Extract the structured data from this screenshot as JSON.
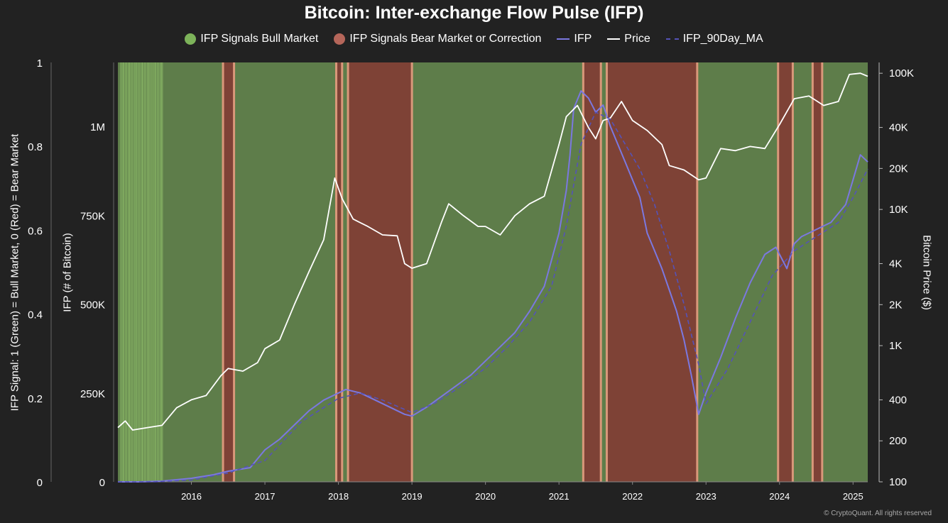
{
  "colors": {
    "background": "#222222",
    "bull": "#5e7d4a",
    "bull_bright": "#8fbe6a",
    "bear": "#7e4236",
    "bear_edge": "#d9987a",
    "legend_bull": "#7db35a",
    "legend_bear": "#b5665a",
    "ifp": "#7b78e0",
    "price": "#ffffff",
    "ma": "#5552b8"
  },
  "chart_data": {
    "type": "line",
    "title": "Bitcoin: Inter-exchange Flow Pulse (IFP)",
    "legend": {
      "placement": "top-center",
      "entries": [
        {
          "label": "IFP Signals Bull Market",
          "symbol": "dot",
          "color": "#7db35a"
        },
        {
          "label": "IFP Signals Bear Market or Correction",
          "symbol": "dot",
          "color": "#b5665a"
        },
        {
          "label": "IFP",
          "symbol": "line",
          "color": "#7b78e0"
        },
        {
          "label": "Price",
          "symbol": "line",
          "color": "#ffffff"
        },
        {
          "label": "IFP_90Day_MA",
          "symbol": "dash",
          "color": "#5552b8"
        }
      ]
    },
    "x_axis": {
      "range": [
        2015.0,
        2025.2
      ],
      "ticks": [
        2016,
        2017,
        2018,
        2019,
        2020,
        2021,
        2022,
        2023,
        2024,
        2025
      ],
      "tick_labels": [
        "2016",
        "2017",
        "2018",
        "2019",
        "2020",
        "2021",
        "2022",
        "2023",
        "2024",
        "2025"
      ]
    },
    "y_axis_signal": {
      "label": "IFP Signal: 1 (Green) = Bull Market, 0 (Red) = Bear Market",
      "range": [
        0,
        1
      ],
      "ticks": [
        0,
        0.2,
        0.4,
        0.6,
        0.8,
        1
      ],
      "tick_labels": [
        "0",
        "0.2",
        "0.4",
        "0.6",
        "0.8",
        "1"
      ]
    },
    "y_axis_ifp": {
      "label": "IFP (# of Bitcoin)",
      "range": [
        0,
        1180000
      ],
      "ticks": [
        0,
        250000,
        500000,
        750000,
        1000000
      ],
      "tick_labels": [
        "0",
        "250K",
        "500K",
        "750K",
        "1M"
      ]
    },
    "y_axis_price": {
      "label": "Bitcoin Price ($)",
      "scale": "log",
      "range": [
        100,
        120000
      ],
      "ticks": [
        100,
        200,
        400,
        1000,
        2000,
        4000,
        10000,
        20000,
        40000,
        100000
      ],
      "tick_labels": [
        "100",
        "200",
        "400",
        "1K",
        "2K",
        "4K",
        "10K",
        "20K",
        "40K",
        "100K"
      ]
    },
    "grid": false,
    "early_bull_stripes": {
      "range": [
        2015.03,
        2015.62
      ],
      "count": 34
    },
    "bear_periods": [
      [
        2016.43,
        2016.58
      ],
      [
        2017.97,
        2018.05
      ],
      [
        2018.13,
        2019.0
      ],
      [
        2021.33,
        2021.57
      ],
      [
        2021.65,
        2022.88
      ],
      [
        2023.98,
        2024.18
      ],
      [
        2024.45,
        2024.58
      ]
    ],
    "series": [
      {
        "name": "IFP",
        "axis": "ifp",
        "x": [
          2015.0,
          2015.3,
          2015.6,
          2016.0,
          2016.3,
          2016.5,
          2016.8,
          2017.0,
          2017.2,
          2017.4,
          2017.6,
          2017.8,
          2018.0,
          2018.1,
          2018.3,
          2018.5,
          2018.7,
          2018.9,
          2019.0,
          2019.2,
          2019.4,
          2019.6,
          2019.8,
          2020.0,
          2020.2,
          2020.4,
          2020.6,
          2020.8,
          2021.0,
          2021.1,
          2021.15,
          2021.2,
          2021.3,
          2021.4,
          2021.5,
          2021.6,
          2021.7,
          2021.8,
          2021.9,
          2022.0,
          2022.1,
          2022.2,
          2022.3,
          2022.4,
          2022.5,
          2022.6,
          2022.7,
          2022.8,
          2022.9,
          2023.0,
          2023.2,
          2023.4,
          2023.6,
          2023.8,
          2023.95,
          2024.1,
          2024.2,
          2024.3,
          2024.5,
          2024.7,
          2024.9,
          2025.0,
          2025.1,
          2025.2
        ],
        "values": [
          0,
          0,
          2000,
          10000,
          20000,
          30000,
          40000,
          90000,
          120000,
          160000,
          200000,
          230000,
          250000,
          260000,
          250000,
          230000,
          210000,
          190000,
          185000,
          210000,
          240000,
          270000,
          300000,
          340000,
          380000,
          420000,
          480000,
          550000,
          700000,
          820000,
          920000,
          1050000,
          1100000,
          1080000,
          1040000,
          1060000,
          1000000,
          950000,
          900000,
          850000,
          800000,
          700000,
          650000,
          600000,
          540000,
          480000,
          400000,
          300000,
          190000,
          250000,
          350000,
          460000,
          560000,
          640000,
          660000,
          600000,
          670000,
          690000,
          710000,
          730000,
          780000,
          850000,
          920000,
          900000
        ]
      },
      {
        "name": "Price",
        "axis": "price",
        "x": [
          2015.0,
          2015.1,
          2015.2,
          2015.4,
          2015.6,
          2015.8,
          2016.0,
          2016.2,
          2016.4,
          2016.5,
          2016.7,
          2016.9,
          2017.0,
          2017.2,
          2017.4,
          2017.6,
          2017.8,
          2017.95,
          2018.05,
          2018.2,
          2018.4,
          2018.6,
          2018.8,
          2018.9,
          2019.0,
          2019.2,
          2019.4,
          2019.5,
          2019.7,
          2019.9,
          2020.0,
          2020.2,
          2020.4,
          2020.6,
          2020.8,
          2021.0,
          2021.1,
          2021.25,
          2021.4,
          2021.5,
          2021.6,
          2021.7,
          2021.85,
          2022.0,
          2022.2,
          2022.4,
          2022.5,
          2022.7,
          2022.9,
          2023.0,
          2023.2,
          2023.4,
          2023.6,
          2023.8,
          2024.0,
          2024.2,
          2024.4,
          2024.6,
          2024.8,
          2024.95,
          2025.1,
          2025.2
        ],
        "values": [
          250,
          280,
          240,
          250,
          260,
          350,
          400,
          430,
          600,
          680,
          650,
          750,
          950,
          1100,
          2000,
          3500,
          6000,
          17000,
          12000,
          8500,
          7500,
          6500,
          6400,
          4000,
          3700,
          4000,
          8000,
          11000,
          9000,
          7500,
          7500,
          6500,
          9000,
          11000,
          12500,
          30000,
          48000,
          58000,
          40000,
          33000,
          45000,
          47000,
          62000,
          45000,
          38000,
          30000,
          21000,
          19500,
          16500,
          17000,
          28000,
          27000,
          29000,
          28000,
          42000,
          65000,
          68000,
          58000,
          62000,
          98000,
          100000,
          95000
        ]
      },
      {
        "name": "IFP_90Day_MA",
        "axis": "ifp",
        "x": [
          2015.0,
          2015.5,
          2016.0,
          2016.5,
          2017.0,
          2017.5,
          2018.0,
          2018.3,
          2018.6,
          2019.0,
          2019.3,
          2019.6,
          2020.0,
          2020.3,
          2020.6,
          2020.9,
          2021.1,
          2021.3,
          2021.5,
          2021.7,
          2021.9,
          2022.1,
          2022.3,
          2022.5,
          2022.7,
          2022.9,
          2023.0,
          2023.3,
          2023.6,
          2023.9,
          2024.2,
          2024.5,
          2024.8,
          2025.0,
          2025.2
        ],
        "values": [
          0,
          0,
          5000,
          25000,
          60000,
          170000,
          235000,
          250000,
          230000,
          195000,
          220000,
          260000,
          320000,
          380000,
          450000,
          550000,
          720000,
          950000,
          1040000,
          1020000,
          950000,
          880000,
          780000,
          650000,
          500000,
          330000,
          220000,
          320000,
          450000,
          580000,
          650000,
          690000,
          730000,
          800000,
          880000
        ]
      }
    ]
  },
  "copyright": "© CryptoQuant. All rights reserved"
}
